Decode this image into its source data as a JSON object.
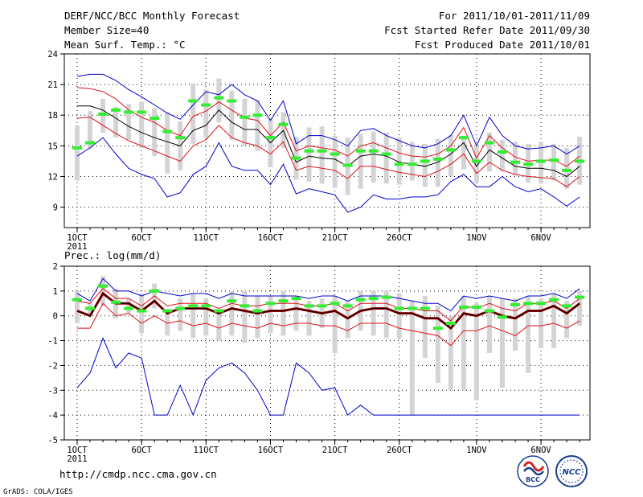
{
  "header": {
    "title": "DERF/NCC/BCC Monthly Forecast",
    "member_size": "Member Size=40",
    "variable": "Mean Surf. Temp.: °C",
    "period": "For 2011/10/01-2011/11/09",
    "fcst_started": "Fcst Started Refer Date 2011/09/30",
    "fcst_produced": "Fcst Produced Date 2011/10/01"
  },
  "footer": {
    "url": "http://cmdp.ncc.cma.gov.cn",
    "grads": "GrADS: COLA/IGES",
    "logo_bcc": "BCC",
    "logo_ncc": "NCC"
  },
  "colors": {
    "envelope": "#0000cc",
    "spread": "#e0101a",
    "mean": "#000000",
    "obs": "#33ee33",
    "box": "#d4d4d4"
  },
  "chart_data": [
    {
      "type": "line",
      "title": "Mean Surf. Temp.: °C",
      "xlabel": "",
      "ylabel": "",
      "ylim": [
        7,
        24
      ],
      "yticks": [
        9,
        12,
        15,
        18,
        21,
        24
      ],
      "x_ticks": [
        {
          "day": 1,
          "label": "1OCT"
        },
        {
          "day": 6,
          "label": "6OCT"
        },
        {
          "day": 11,
          "label": "11OCT"
        },
        {
          "day": 16,
          "label": "16OCT"
        },
        {
          "day": 21,
          "label": "21OCT"
        },
        {
          "day": 26,
          "label": "26OCT"
        },
        {
          "day": 32,
          "label": "1NOV"
        },
        {
          "day": 37,
          "label": "6NOV"
        }
      ],
      "year_label": "2011",
      "days": [
        1,
        2,
        3,
        4,
        5,
        6,
        7,
        8,
        9,
        10,
        11,
        12,
        13,
        14,
        15,
        16,
        17,
        18,
        19,
        20,
        21,
        22,
        23,
        24,
        25,
        26,
        27,
        28,
        29,
        30,
        31,
        32,
        33,
        34,
        35,
        36,
        37,
        38,
        39,
        40
      ],
      "series": [
        {
          "name": "max",
          "values": [
            21.8,
            22.0,
            22.0,
            21.4,
            20.5,
            19.8,
            19.0,
            18.2,
            17.6,
            19.0,
            20.3,
            20.0,
            21.0,
            20.0,
            19.4,
            17.5,
            19.4,
            15.2,
            16.0,
            16.0,
            15.6,
            15.0,
            16.5,
            16.7,
            16.0,
            15.5,
            15.0,
            14.8,
            15.2,
            16.0,
            18.0,
            15.0,
            17.8,
            16.0,
            15.0,
            14.7,
            14.8,
            15.0,
            14.2,
            15.0
          ]
        },
        {
          "name": "upper",
          "values": [
            20.7,
            20.6,
            20.3,
            19.6,
            18.5,
            17.8,
            17.3,
            16.5,
            16.0,
            17.9,
            18.4,
            19.3,
            18.5,
            17.7,
            17.5,
            16.0,
            17.3,
            14.5,
            15.0,
            14.8,
            14.6,
            14.0,
            15.0,
            15.3,
            14.8,
            14.3,
            14.0,
            13.9,
            14.2,
            15.0,
            16.8,
            13.8,
            16.0,
            14.8,
            13.9,
            13.5,
            13.6,
            13.6,
            13.0,
            14.0
          ]
        },
        {
          "name": "mean",
          "values": [
            18.9,
            18.9,
            18.5,
            17.7,
            16.9,
            16.3,
            15.8,
            15.4,
            15.0,
            16.5,
            17.0,
            18.5,
            17.3,
            16.6,
            16.6,
            15.3,
            16.5,
            13.4,
            14.0,
            13.8,
            13.7,
            13.0,
            14.0,
            14.2,
            14.0,
            13.4,
            13.2,
            13.0,
            13.4,
            14.2,
            15.3,
            13.0,
            14.6,
            13.8,
            13.0,
            12.8,
            12.8,
            12.6,
            12.0,
            13.0
          ]
        },
        {
          "name": "lower",
          "values": [
            17.7,
            17.8,
            17.0,
            16.2,
            15.5,
            15.0,
            14.5,
            14.0,
            13.5,
            15.0,
            15.6,
            17.0,
            15.8,
            15.3,
            15.0,
            14.2,
            15.4,
            12.6,
            13.0,
            12.8,
            12.6,
            11.8,
            13.0,
            13.0,
            12.7,
            12.4,
            12.2,
            12.0,
            12.5,
            13.2,
            14.2,
            12.3,
            13.4,
            12.6,
            12.2,
            12.0,
            11.9,
            11.8,
            11.0,
            12.0
          ]
        },
        {
          "name": "min",
          "values": [
            14.0,
            14.8,
            15.8,
            14.2,
            12.8,
            12.2,
            11.8,
            10.0,
            10.4,
            12.2,
            13.0,
            15.3,
            13.0,
            12.6,
            12.6,
            11.2,
            13.2,
            10.3,
            10.8,
            10.5,
            10.2,
            8.5,
            9.0,
            10.2,
            9.8,
            9.8,
            10.0,
            10.0,
            10.2,
            11.5,
            12.2,
            11.0,
            11.0,
            12.0,
            11.0,
            10.5,
            10.8,
            10.0,
            9.1,
            10.0
          ]
        },
        {
          "name": "obs",
          "values": [
            14.8,
            15.3,
            18.1,
            18.5,
            18.3,
            18.3,
            17.7,
            16.4,
            15.8,
            19.4,
            19.0,
            19.7,
            19.4,
            17.8,
            18.0,
            15.8,
            17.1,
            13.8,
            14.5,
            14.5,
            14.2,
            13.1,
            14.5,
            14.5,
            14.2,
            13.2,
            13.2,
            13.5,
            13.7,
            14.6,
            15.8,
            13.5,
            15.3,
            14.4,
            13.4,
            13.2,
            13.5,
            13.6,
            12.6,
            13.5
          ]
        },
        {
          "name": "box_top",
          "values": [
            17.0,
            18.4,
            19.6,
            18.8,
            19.1,
            19.3,
            18.7,
            18.3,
            17.4,
            21.1,
            20.5,
            21.6,
            20.4,
            19.6,
            19.5,
            17.7,
            18.3,
            15.9,
            16.8,
            16.9,
            16.0,
            15.8,
            16.2,
            16.4,
            16.3,
            15.8,
            15.4,
            15.2,
            15.7,
            16.1,
            16.0,
            15.0,
            16.3,
            15.6,
            15.4,
            15.2,
            15.4,
            15.2,
            14.8,
            15.9
          ]
        },
        {
          "name": "box_bottom",
          "values": [
            11.6,
            14.7,
            16.3,
            15.8,
            15.6,
            14.8,
            14.0,
            12.3,
            12.6,
            15.2,
            15.8,
            17.3,
            15.6,
            15.0,
            14.5,
            12.9,
            14.8,
            11.7,
            11.5,
            11.3,
            10.9,
            10.2,
            10.8,
            11.4,
            11.3,
            11.2,
            11.6,
            11.0,
            11.0,
            12.0,
            12.7,
            11.4,
            12.5,
            12.5,
            12.1,
            11.4,
            11.3,
            11.6,
            10.8,
            11.2
          ]
        }
      ]
    },
    {
      "type": "line",
      "title": "Prec.: log(mm/d)",
      "xlabel": "",
      "ylabel": "",
      "ylim": [
        -5,
        2
      ],
      "yticks": [
        -5,
        -4,
        -3,
        -2,
        -1,
        0,
        1,
        2
      ],
      "x_ticks": [
        {
          "day": 1,
          "label": "1OCT"
        },
        {
          "day": 6,
          "label": "6OCT"
        },
        {
          "day": 11,
          "label": "11OCT"
        },
        {
          "day": 16,
          "label": "16OCT"
        },
        {
          "day": 21,
          "label": "21OCT"
        },
        {
          "day": 26,
          "label": "26OCT"
        },
        {
          "day": 32,
          "label": "1NOV"
        },
        {
          "day": 37,
          "label": "6NOV"
        }
      ],
      "year_label": "2011",
      "days": [
        1,
        2,
        3,
        4,
        5,
        6,
        7,
        8,
        9,
        10,
        11,
        12,
        13,
        14,
        15,
        16,
        17,
        18,
        19,
        20,
        21,
        22,
        23,
        24,
        25,
        26,
        27,
        28,
        29,
        30,
        31,
        32,
        33,
        34,
        35,
        36,
        37,
        38,
        39,
        40
      ],
      "series": [
        {
          "name": "max",
          "values": [
            0.9,
            0.6,
            1.5,
            1.0,
            1.0,
            0.8,
            1.0,
            0.9,
            0.8,
            0.9,
            0.9,
            0.7,
            0.9,
            0.8,
            0.8,
            0.8,
            0.8,
            0.8,
            0.7,
            0.8,
            0.8,
            0.6,
            0.8,
            0.8,
            0.8,
            0.7,
            0.6,
            0.5,
            0.5,
            0.2,
            0.8,
            0.7,
            0.8,
            0.7,
            0.6,
            0.8,
            0.8,
            0.9,
            0.7,
            1.1
          ]
        },
        {
          "name": "upper",
          "values": [
            0.6,
            0.5,
            1.1,
            0.7,
            0.7,
            0.4,
            0.8,
            0.4,
            0.5,
            0.5,
            0.5,
            0.3,
            0.5,
            0.4,
            0.4,
            0.5,
            0.5,
            0.5,
            0.4,
            0.4,
            0.5,
            0.2,
            0.5,
            0.5,
            0.5,
            0.3,
            0.3,
            0.2,
            0.2,
            -0.2,
            0.4,
            0.3,
            0.5,
            0.3,
            0.2,
            0.5,
            0.5,
            0.6,
            0.3,
            0.7
          ]
        },
        {
          "name": "mean",
          "values": [
            0.2,
            0.0,
            0.9,
            0.5,
            0.5,
            0.2,
            0.6,
            0.1,
            0.3,
            0.3,
            0.3,
            0.1,
            0.3,
            0.2,
            0.1,
            0.2,
            0.2,
            0.3,
            0.2,
            0.1,
            0.2,
            -0.1,
            0.2,
            0.3,
            0.3,
            0.1,
            0.1,
            -0.1,
            -0.1,
            -0.5,
            0.1,
            0.0,
            0.2,
            0.0,
            -0.1,
            0.2,
            0.2,
            0.4,
            0.1,
            0.5
          ]
        },
        {
          "name": "lower",
          "values": [
            -0.5,
            -0.5,
            0.5,
            0.0,
            0.1,
            -0.3,
            0.0,
            -0.3,
            -0.2,
            -0.4,
            -0.3,
            -0.5,
            -0.3,
            -0.4,
            -0.5,
            -0.3,
            -0.4,
            -0.3,
            -0.3,
            -0.4,
            -0.4,
            -0.6,
            -0.3,
            -0.3,
            -0.3,
            -0.5,
            -0.6,
            -0.7,
            -0.8,
            -1.2,
            -0.6,
            -0.6,
            -0.4,
            -0.6,
            -0.8,
            -0.4,
            -0.4,
            -0.3,
            -0.5,
            -0.2
          ]
        },
        {
          "name": "min",
          "values": [
            -2.9,
            -2.3,
            -0.9,
            -2.1,
            -1.5,
            -1.7,
            -4.0,
            -4.0,
            -2.8,
            -4.0,
            -2.6,
            -2.1,
            -1.9,
            -2.3,
            -3.0,
            -4.0,
            -4.0,
            -1.9,
            -2.3,
            -3.0,
            -2.9,
            -4.0,
            -3.6,
            -4.0,
            -4.0,
            -4.0,
            -4.0,
            -4.0,
            -4.0,
            -4.0,
            -4.0,
            -4.0,
            -4.0,
            -4.0,
            -4.0,
            -4.0,
            -4.0,
            -4.0,
            -4.0,
            -4.0
          ]
        },
        {
          "name": "obs",
          "values": [
            0.65,
            0.3,
            1.2,
            0.55,
            0.3,
            0.2,
            1.0,
            0.2,
            0.3,
            0.4,
            0.4,
            0.2,
            0.6,
            0.4,
            0.2,
            0.5,
            0.6,
            0.7,
            0.4,
            0.4,
            0.5,
            0.4,
            0.65,
            0.7,
            0.75,
            0.3,
            0.3,
            0.3,
            -0.5,
            -0.3,
            0.35,
            0.35,
            0.2,
            -0.05,
            0.45,
            0.5,
            0.5,
            0.65,
            0.4,
            0.75
          ]
        },
        {
          "name": "box_top",
          "values": [
            1.0,
            0.5,
            1.6,
            1.1,
            0.7,
            0.9,
            1.3,
            0.2,
            0.7,
            0.9,
            0.7,
            0.2,
            1.0,
            1.0,
            0.8,
            0.8,
            1.0,
            0.8,
            0.6,
            0.7,
            0.8,
            0.6,
            1.0,
            1.0,
            1.0,
            0.9,
            0.6,
            0.8,
            0.4,
            0.0,
            0.8,
            0.5,
            0.8,
            0.7,
            0.7,
            0.8,
            0.7,
            0.9,
            0.6,
            1.0
          ]
        },
        {
          "name": "box_bottom",
          "values": [
            -0.3,
            0.0,
            0.4,
            -0.1,
            0.1,
            -0.7,
            0.3,
            -0.8,
            -0.6,
            -0.9,
            -0.8,
            -1.0,
            -0.8,
            -1.1,
            -0.9,
            -0.7,
            -0.8,
            -0.6,
            -0.8,
            -0.5,
            -1.5,
            -0.9,
            -0.6,
            -0.8,
            -0.9,
            -0.9,
            -4.0,
            -1.7,
            -2.7,
            -3.0,
            -3.0,
            -3.4,
            -1.5,
            -2.9,
            -1.4,
            -2.3,
            -1.3,
            -1.3,
            -0.9,
            -0.4
          ]
        }
      ]
    }
  ]
}
